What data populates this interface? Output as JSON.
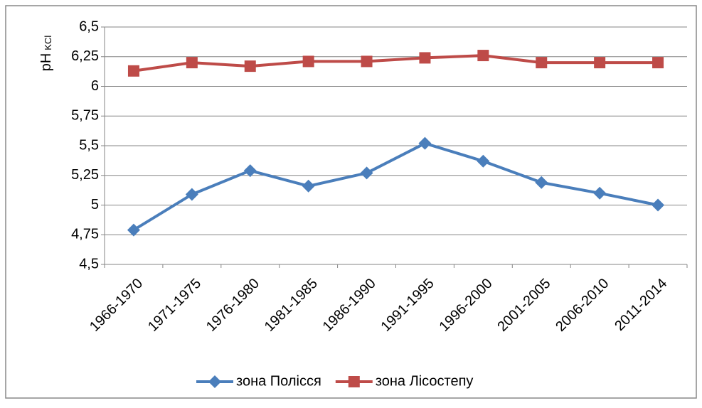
{
  "chart_data": {
    "type": "line",
    "ylabel": "pH",
    "ylabel_subscript": "KCl",
    "categories": [
      "1966-1970",
      "1971-1975",
      "1976-1980",
      "1981-1985",
      "1986-1990",
      "1991-1995",
      "1996-2000",
      "2001-2005",
      "2006-2010",
      "2011-2014"
    ],
    "series": [
      {
        "name": "зона Полісся",
        "color": "#4a7ebb",
        "marker": "diamond",
        "values": [
          4.79,
          5.09,
          5.29,
          5.16,
          5.27,
          5.52,
          5.37,
          5.19,
          5.1,
          5.0
        ]
      },
      {
        "name": "зона Лісостепу",
        "color": "#be4b48",
        "marker": "square",
        "values": [
          6.13,
          6.2,
          6.17,
          6.21,
          6.21,
          6.24,
          6.26,
          6.2,
          6.2,
          6.2
        ]
      }
    ],
    "ylim": [
      4.5,
      6.5
    ],
    "yticks": [
      {
        "value": 4.5,
        "label": "4,5"
      },
      {
        "value": 4.75,
        "label": "4,75"
      },
      5,
      {
        "value": 5.25,
        "label": "5,25"
      },
      {
        "value": 5.5,
        "label": "5,5"
      },
      {
        "value": 5.75,
        "label": "5,75"
      },
      6,
      {
        "value": 6.25,
        "label": "6,25"
      },
      {
        "value": 6.5,
        "label": "6,5"
      }
    ],
    "grid": true,
    "legend": "bottom"
  }
}
